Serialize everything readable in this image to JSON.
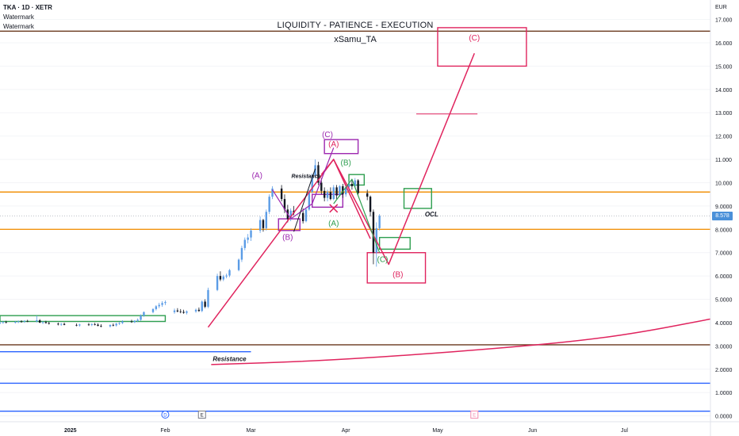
{
  "header": {
    "symbol_line": "TKA · 1D · XETR",
    "watermark_1": "Watermark",
    "watermark_2": "Watermark",
    "title": "LIQUIDITY - PATIENCE - EXECUTION",
    "author": "xSamu_TA",
    "currency": "EUR",
    "last_price": "8.578"
  },
  "colors": {
    "bull": "#5b9ce6",
    "bear": "#131722",
    "magenta": "#e0245e",
    "purple": "#9c27b0",
    "green": "#2e9e4f",
    "orange": "#f2930d",
    "brown": "#6b3a1f",
    "blue_line": "#2962ff"
  },
  "chart_data": {
    "type": "candlestick",
    "y_axis": {
      "min": 0,
      "max": 17,
      "ticks": [
        "0.0000",
        "1.0000",
        "2.0000",
        "3.0000",
        "4.0000",
        "5.0000",
        "6.0000",
        "7.0000",
        "8.0000",
        "9.0000",
        "10.000",
        "11.000",
        "12.000",
        "13.000",
        "14.000",
        "15.000",
        "16.000",
        "17.000"
      ]
    },
    "x_axis": {
      "labels": [
        {
          "text": "2025",
          "day": 0,
          "bold": true
        },
        {
          "text": "Feb",
          "day": 31
        },
        {
          "text": "Mar",
          "day": 59
        },
        {
          "text": "Apr",
          "day": 90
        },
        {
          "text": "May",
          "day": 120
        },
        {
          "text": "Jun",
          "day": 151
        },
        {
          "text": "Jul",
          "day": 181
        }
      ],
      "markers": [
        {
          "text": "D",
          "day": 31,
          "style": "circle"
        },
        {
          "text": "E",
          "day": 43,
          "style": "square"
        },
        {
          "text": "E",
          "day": 132,
          "style": "square-pink"
        }
      ],
      "start_day": -23,
      "end_day": 209
    },
    "candles": [
      {
        "day": -23,
        "o": 3.98,
        "h": 4.05,
        "l": 3.93,
        "c": 4.0
      },
      {
        "day": -22,
        "o": 4.0,
        "h": 4.06,
        "l": 3.95,
        "c": 4.02
      },
      {
        "day": -21,
        "o": 4.02,
        "h": 4.08,
        "l": 3.97,
        "c": 4.0
      },
      {
        "day": -18,
        "o": 4.0,
        "h": 4.07,
        "l": 3.96,
        "c": 4.03
      },
      {
        "day": -17,
        "o": 4.03,
        "h": 4.09,
        "l": 3.98,
        "c": 4.05
      },
      {
        "day": -16,
        "o": 4.05,
        "h": 4.1,
        "l": 4.0,
        "c": 4.04
      },
      {
        "day": -15,
        "o": 4.04,
        "h": 4.1,
        "l": 3.99,
        "c": 4.07
      },
      {
        "day": -14,
        "o": 4.07,
        "h": 4.12,
        "l": 4.02,
        "c": 4.05
      },
      {
        "day": -11,
        "o": 4.05,
        "h": 4.3,
        "l": 4.01,
        "c": 4.1
      },
      {
        "day": -10,
        "o": 4.1,
        "h": 4.15,
        "l": 3.98,
        "c": 4.0
      },
      {
        "day": -9,
        "o": 4.0,
        "h": 4.06,
        "l": 3.94,
        "c": 4.02
      },
      {
        "day": -8,
        "o": 4.02,
        "h": 4.08,
        "l": 3.96,
        "c": 3.98
      },
      {
        "day": -7,
        "o": 3.98,
        "h": 4.03,
        "l": 3.92,
        "c": 3.95
      },
      {
        "day": -4,
        "o": 3.95,
        "h": 4.0,
        "l": 3.88,
        "c": 3.92
      },
      {
        "day": -3,
        "o": 3.92,
        "h": 3.98,
        "l": 3.86,
        "c": 3.94
      },
      {
        "day": -2,
        "o": 3.94,
        "h": 4.0,
        "l": 3.89,
        "c": 3.9
      },
      {
        "day": 2,
        "o": 3.9,
        "h": 3.96,
        "l": 3.84,
        "c": 3.88
      },
      {
        "day": 3,
        "o": 3.88,
        "h": 3.95,
        "l": 3.83,
        "c": 3.92
      },
      {
        "day": 6,
        "o": 3.92,
        "h": 3.98,
        "l": 3.86,
        "c": 3.9
      },
      {
        "day": 7,
        "o": 3.9,
        "h": 3.97,
        "l": 3.85,
        "c": 3.93
      },
      {
        "day": 8,
        "o": 3.93,
        "h": 3.99,
        "l": 3.88,
        "c": 3.91
      },
      {
        "day": 9,
        "o": 3.91,
        "h": 3.97,
        "l": 3.84,
        "c": 3.86
      },
      {
        "day": 10,
        "o": 3.86,
        "h": 3.93,
        "l": 3.8,
        "c": 3.84
      },
      {
        "day": 13,
        "o": 3.84,
        "h": 3.92,
        "l": 3.79,
        "c": 3.9
      },
      {
        "day": 14,
        "o": 3.9,
        "h": 3.96,
        "l": 3.84,
        "c": 3.88
      },
      {
        "day": 15,
        "o": 3.88,
        "h": 3.99,
        "l": 3.83,
        "c": 3.95
      },
      {
        "day": 16,
        "o": 3.95,
        "h": 4.02,
        "l": 3.9,
        "c": 3.98
      },
      {
        "day": 17,
        "o": 3.98,
        "h": 4.1,
        "l": 3.94,
        "c": 4.05
      },
      {
        "day": 20,
        "o": 4.05,
        "h": 4.12,
        "l": 3.99,
        "c": 4.02
      },
      {
        "day": 21,
        "o": 4.02,
        "h": 4.1,
        "l": 3.98,
        "c": 4.08
      },
      {
        "day": 22,
        "o": 4.08,
        "h": 4.18,
        "l": 4.02,
        "c": 4.12
      },
      {
        "day": 23,
        "o": 4.12,
        "h": 4.35,
        "l": 4.08,
        "c": 4.3
      },
      {
        "day": 24,
        "o": 4.3,
        "h": 4.48,
        "l": 4.25,
        "c": 4.45
      },
      {
        "day": 27,
        "o": 4.45,
        "h": 4.62,
        "l": 4.4,
        "c": 4.58
      },
      {
        "day": 28,
        "o": 4.58,
        "h": 4.75,
        "l": 4.52,
        "c": 4.7
      },
      {
        "day": 29,
        "o": 4.7,
        "h": 4.85,
        "l": 4.62,
        "c": 4.76
      },
      {
        "day": 30,
        "o": 4.76,
        "h": 4.92,
        "l": 4.68,
        "c": 4.84
      },
      {
        "day": 31,
        "o": 4.84,
        "h": 4.95,
        "l": 4.75,
        "c": 4.88
      },
      {
        "day": 34,
        "o": 4.45,
        "h": 4.6,
        "l": 4.38,
        "c": 4.52
      },
      {
        "day": 35,
        "o": 4.52,
        "h": 4.62,
        "l": 4.44,
        "c": 4.48
      },
      {
        "day": 36,
        "o": 4.48,
        "h": 4.58,
        "l": 4.4,
        "c": 4.46
      },
      {
        "day": 37,
        "o": 4.46,
        "h": 4.55,
        "l": 4.38,
        "c": 4.42
      },
      {
        "day": 38,
        "o": 4.42,
        "h": 4.52,
        "l": 4.35,
        "c": 4.48
      },
      {
        "day": 41,
        "o": 4.48,
        "h": 4.6,
        "l": 4.42,
        "c": 4.55
      },
      {
        "day": 42,
        "o": 4.55,
        "h": 4.65,
        "l": 4.46,
        "c": 4.5
      },
      {
        "day": 43,
        "o": 4.5,
        "h": 4.95,
        "l": 4.45,
        "c": 4.9
      },
      {
        "day": 44,
        "o": 4.9,
        "h": 5.0,
        "l": 4.62,
        "c": 4.68
      },
      {
        "day": 45,
        "o": 4.68,
        "h": 5.5,
        "l": 4.62,
        "c": 5.4
      },
      {
        "day": 48,
        "o": 5.4,
        "h": 6.1,
        "l": 5.35,
        "c": 6.0
      },
      {
        "day": 49,
        "o": 6.0,
        "h": 6.2,
        "l": 5.78,
        "c": 5.85
      },
      {
        "day": 50,
        "o": 5.85,
        "h": 6.05,
        "l": 5.78,
        "c": 5.98
      },
      {
        "day": 51,
        "o": 5.98,
        "h": 6.1,
        "l": 5.9,
        "c": 6.02
      },
      {
        "day": 52,
        "o": 6.02,
        "h": 6.3,
        "l": 5.95,
        "c": 6.25
      },
      {
        "day": 55,
        "o": 6.25,
        "h": 6.75,
        "l": 6.2,
        "c": 6.7
      },
      {
        "day": 56,
        "o": 6.7,
        "h": 7.3,
        "l": 6.6,
        "c": 7.2
      },
      {
        "day": 57,
        "o": 7.2,
        "h": 7.65,
        "l": 7.1,
        "c": 7.55
      },
      {
        "day": 58,
        "o": 7.55,
        "h": 7.8,
        "l": 7.4,
        "c": 7.65
      },
      {
        "day": 59,
        "o": 7.65,
        "h": 8.05,
        "l": 7.5,
        "c": 7.95
      },
      {
        "day": 62,
        "o": 7.95,
        "h": 8.55,
        "l": 7.85,
        "c": 8.4
      },
      {
        "day": 63,
        "o": 8.4,
        "h": 8.45,
        "l": 7.9,
        "c": 8.05
      },
      {
        "day": 64,
        "o": 8.05,
        "h": 8.85,
        "l": 7.95,
        "c": 8.75
      },
      {
        "day": 65,
        "o": 8.75,
        "h": 9.5,
        "l": 8.65,
        "c": 9.4
      },
      {
        "day": 66,
        "o": 9.4,
        "h": 9.85,
        "l": 9.3,
        "c": 9.75
      },
      {
        "day": 69,
        "o": 9.75,
        "h": 9.9,
        "l": 9.2,
        "c": 9.3
      },
      {
        "day": 70,
        "o": 9.3,
        "h": 9.5,
        "l": 8.7,
        "c": 8.85
      },
      {
        "day": 71,
        "o": 8.85,
        "h": 9.05,
        "l": 8.3,
        "c": 8.45
      },
      {
        "day": 72,
        "o": 8.45,
        "h": 8.9,
        "l": 8.35,
        "c": 8.8
      },
      {
        "day": 73,
        "o": 8.8,
        "h": 9.0,
        "l": 8.6,
        "c": 8.7
      },
      {
        "day": 76,
        "o": 8.7,
        "h": 8.9,
        "l": 8.25,
        "c": 8.35
      },
      {
        "day": 77,
        "o": 8.35,
        "h": 8.95,
        "l": 8.3,
        "c": 8.85
      },
      {
        "day": 78,
        "o": 8.85,
        "h": 9.7,
        "l": 8.8,
        "c": 9.6
      },
      {
        "day": 79,
        "o": 9.6,
        "h": 10.4,
        "l": 9.55,
        "c": 10.3
      },
      {
        "day": 80,
        "o": 10.3,
        "h": 11.0,
        "l": 10.2,
        "c": 10.75
      },
      {
        "day": 81,
        "o": 10.75,
        "h": 10.9,
        "l": 9.9,
        "c": 10.0
      },
      {
        "day": 82,
        "o": 10.0,
        "h": 10.2,
        "l": 9.5,
        "c": 9.65
      },
      {
        "day": 83,
        "o": 9.65,
        "h": 9.8,
        "l": 9.2,
        "c": 9.35
      },
      {
        "day": 84,
        "o": 9.35,
        "h": 9.7,
        "l": 9.2,
        "c": 9.6
      },
      {
        "day": 85,
        "o": 9.6,
        "h": 9.8,
        "l": 9.25,
        "c": 9.3
      },
      {
        "day": 86,
        "o": 9.3,
        "h": 9.9,
        "l": 9.25,
        "c": 9.8
      },
      {
        "day": 87,
        "o": 9.8,
        "h": 9.9,
        "l": 9.3,
        "c": 9.45
      },
      {
        "day": 88,
        "o": 9.45,
        "h": 9.9,
        "l": 9.4,
        "c": 9.85
      },
      {
        "day": 89,
        "o": 9.85,
        "h": 9.95,
        "l": 9.35,
        "c": 9.5
      },
      {
        "day": 90,
        "o": 9.5,
        "h": 9.9,
        "l": 9.4,
        "c": 9.8
      },
      {
        "day": 91,
        "o": 9.8,
        "h": 10.05,
        "l": 9.6,
        "c": 9.95
      },
      {
        "day": 92,
        "o": 9.95,
        "h": 10.1,
        "l": 9.7,
        "c": 9.85
      },
      {
        "day": 93,
        "o": 9.85,
        "h": 10.2,
        "l": 9.75,
        "c": 10.1
      },
      {
        "day": 94,
        "o": 10.1,
        "h": 10.15,
        "l": 9.45,
        "c": 9.55
      },
      {
        "day": 97,
        "o": 9.55,
        "h": 9.7,
        "l": 9.25,
        "c": 9.4
      },
      {
        "day": 98,
        "o": 9.4,
        "h": 9.45,
        "l": 8.55,
        "c": 8.75
      },
      {
        "day": 99,
        "o": 8.75,
        "h": 8.85,
        "l": 6.5,
        "c": 7.0
      },
      {
        "day": 100,
        "o": 7.0,
        "h": 8.3,
        "l": 6.4,
        "c": 8.05
      },
      {
        "day": 101,
        "o": 8.05,
        "h": 8.65,
        "l": 7.95,
        "c": 8.58
      }
    ],
    "levels": [
      {
        "name": "brown-top",
        "value": 16.5,
        "color": "#6b3a1f",
        "from_day": -23,
        "to_day": 209
      },
      {
        "name": "orange-upper",
        "value": 9.6,
        "color": "#f2930d",
        "from_day": -23,
        "to_day": 209
      },
      {
        "name": "orange-lower",
        "value": 8.0,
        "color": "#f2930d",
        "from_day": -23,
        "to_day": 209
      },
      {
        "name": "last-price",
        "value": 8.578,
        "color": "#b2b5be",
        "from_day": -23,
        "to_day": 209
      },
      {
        "name": "brown-bottom",
        "value": 3.05,
        "color": "#6b3a1f",
        "from_day": -23,
        "to_day": 209
      },
      {
        "name": "resistance-low",
        "value": 2.75,
        "color": "#2962ff",
        "from_day": -23,
        "to_day": 59
      },
      {
        "name": "blue-mid",
        "value": 1.4,
        "color": "#2962ff",
        "from_day": -23,
        "to_day": 209
      },
      {
        "name": "blue-bottom",
        "value": 0.2,
        "color": "#2962ff",
        "from_day": -23,
        "to_day": 209
      },
      {
        "name": "target-dash",
        "value": 12.95,
        "color": "#e0245e",
        "from_day": 113,
        "to_day": 133
      }
    ],
    "boxes": [
      {
        "color": "#e0245e",
        "d1": 120,
        "d2": 149,
        "y1": 15.0,
        "y2": 16.65
      },
      {
        "color": "#e0245e",
        "d1": 97,
        "d2": 116,
        "y1": 5.7,
        "y2": 7.0
      },
      {
        "color": "#9c27b0",
        "d1": 83,
        "d2": 94,
        "y1": 11.25,
        "y2": 11.85
      },
      {
        "color": "#9c27b0",
        "d1": 68,
        "d2": 75,
        "y1": 7.95,
        "y2": 8.45
      },
      {
        "color": "#9c27b0",
        "d1": 79,
        "d2": 89,
        "y1": 8.95,
        "y2": 9.5
      },
      {
        "color": "#2e9e4f",
        "d1": 91,
        "d2": 96,
        "y1": 9.9,
        "y2": 10.35
      },
      {
        "color": "#2e9e4f",
        "d1": 109,
        "d2": 118,
        "y1": 8.9,
        "y2": 9.75
      },
      {
        "color": "#2e9e4f",
        "d1": 101,
        "d2": 111,
        "y1": 7.15,
        "y2": 7.65
      },
      {
        "color": "#2e9e4f",
        "d1": -23,
        "d2": 31,
        "y1": 4.05,
        "y2": 4.3
      }
    ],
    "paths": [
      {
        "color": "#e0245e",
        "width": 1.5,
        "points": [
          [
            45,
            3.8
          ],
          [
            86,
            11.0
          ],
          [
            104,
            6.5
          ],
          [
            132,
            15.55
          ]
        ]
      },
      {
        "color": "#e0245e",
        "width": 1.5,
        "points": [
          [
            82,
            10.35
          ],
          [
            86,
            11.0
          ],
          [
            98,
            7.6
          ]
        ]
      },
      {
        "color": "#9c27b0",
        "width": 1.2,
        "points": [
          [
            66,
            9.7
          ],
          [
            72,
            8.45
          ],
          [
            79,
            9.1
          ],
          [
            86,
            11.5
          ]
        ]
      },
      {
        "color": "#2e9e4f",
        "width": 1.2,
        "points": [
          [
            86,
            9.1
          ],
          [
            92,
            10.15
          ],
          [
            101,
            7.0
          ]
        ]
      },
      {
        "color": "#131722",
        "width": 1,
        "points": [
          [
            73,
            7.9
          ],
          [
            80,
            10.6
          ]
        ]
      }
    ],
    "cross": {
      "color": "#e0245e",
      "day": 86,
      "value": 8.9
    },
    "curve": {
      "color": "#e0245e",
      "points": [
        [
          46,
          2.2
        ],
        [
          80,
          2.35
        ],
        [
          110,
          2.6
        ],
        [
          140,
          2.9
        ],
        [
          165,
          3.2
        ],
        [
          185,
          3.55
        ],
        [
          209,
          4.15
        ]
      ]
    },
    "annotations": [
      {
        "text": "(C)",
        "day": 132,
        "value": 16.1,
        "color": "#e0245e",
        "size": 10
      },
      {
        "text": "(B)",
        "day": 107,
        "value": 5.95,
        "color": "#e0245e",
        "size": 10
      },
      {
        "text": "(C)",
        "day": 84,
        "value": 11.95,
        "color": "#9c27b0",
        "size": 10
      },
      {
        "text": "(A)",
        "day": 86,
        "value": 11.55,
        "color": "#e0245e",
        "size": 10
      },
      {
        "text": "(A)",
        "day": 61,
        "value": 10.2,
        "color": "#9c27b0",
        "size": 10
      },
      {
        "text": "(B)",
        "day": 71,
        "value": 7.55,
        "color": "#9c27b0",
        "size": 10
      },
      {
        "text": "(B)",
        "day": 90,
        "value": 10.75,
        "color": "#2e9e4f",
        "size": 10
      },
      {
        "text": "(A)",
        "day": 86,
        "value": 8.15,
        "color": "#2e9e4f",
        "size": 10
      },
      {
        "text": "(C)",
        "day": 102,
        "value": 6.6,
        "color": "#2e9e4f",
        "size": 10
      },
      {
        "text": "OCL",
        "day": 118,
        "value": 8.55,
        "color": "#131722",
        "size": 8,
        "italic": true,
        "bold": true
      },
      {
        "text": "Resistance",
        "day": 52,
        "value": 2.35,
        "color": "#131722",
        "size": 8,
        "italic": true,
        "bold": true
      },
      {
        "text": "Resistance",
        "day": 77,
        "value": 10.2,
        "color": "#131722",
        "size": 7,
        "italic": true,
        "bold": true
      }
    ]
  }
}
